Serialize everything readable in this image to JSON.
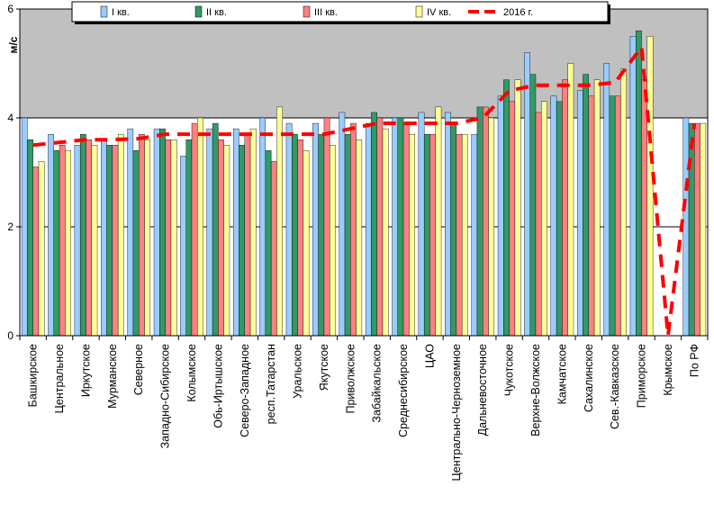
{
  "chart_data": {
    "type": "bar",
    "title": "",
    "xlabel": "",
    "ylabel": "м/с",
    "ylim": [
      0,
      6
    ],
    "yticks": [
      "0",
      "2",
      "4",
      "6"
    ],
    "grid_values": [
      2,
      4
    ],
    "legend_position": "top",
    "colors": {
      "plot_bg_upper": "#c0c0c0",
      "plot_bg_lower": "#ffffff",
      "line": "#ff0000"
    },
    "categories": [
      "Башкирское",
      "Центральное",
      "Иркутское",
      "Мурманское",
      "Северное",
      "Западно-Сибирское",
      "Колымское",
      "Обь-Иртышское",
      "Северо-Западное",
      "респ.Татарстан",
      "Уральское",
      "Якутское",
      "Приволжское",
      "Забайкальское",
      "Среднесибирское",
      "ЦАО",
      "Центрально-Черноземное",
      "Дальневосточное",
      "Чукотское",
      "Верхне-Волжское",
      "Камчатское",
      "Сахалинское",
      "Сев.-Кавказское",
      "Приморское",
      "Крымское",
      "По РФ"
    ],
    "series": [
      {
        "name": "I кв.",
        "color": "#99ccff",
        "values": [
          4.0,
          3.7,
          3.5,
          3.6,
          3.8,
          3.8,
          3.3,
          3.8,
          3.8,
          4.0,
          3.9,
          3.9,
          4.1,
          3.9,
          4.0,
          4.1,
          4.1,
          3.7,
          4.4,
          5.2,
          4.4,
          4.5,
          5.0,
          5.5,
          0,
          4.0
        ]
      },
      {
        "name": "II кв.",
        "color": "#339966",
        "values": [
          3.6,
          3.4,
          3.7,
          3.5,
          3.4,
          3.8,
          3.6,
          3.9,
          3.5,
          3.4,
          3.7,
          3.7,
          3.7,
          4.1,
          4.0,
          3.7,
          3.9,
          4.2,
          4.7,
          4.8,
          4.3,
          4.8,
          4.4,
          5.6,
          0,
          3.9
        ]
      },
      {
        "name": "III кв.",
        "color": "#ff8080",
        "values": [
          3.1,
          3.5,
          3.6,
          3.5,
          3.7,
          3.6,
          3.9,
          3.6,
          3.7,
          3.2,
          3.6,
          4.0,
          3.9,
          4.0,
          3.9,
          3.7,
          3.7,
          4.2,
          4.3,
          4.1,
          4.7,
          4.4,
          4.4,
          4.7,
          0,
          3.9
        ]
      },
      {
        "name": "IV кв.",
        "color": "#ffff99",
        "values": [
          3.2,
          3.4,
          3.5,
          3.7,
          3.6,
          3.6,
          4.0,
          3.5,
          3.8,
          4.2,
          3.4,
          3.5,
          3.6,
          3.8,
          3.7,
          4.2,
          3.7,
          4.0,
          4.7,
          4.3,
          5.0,
          4.7,
          4.9,
          5.5,
          0,
          3.9
        ]
      },
      {
        "name": "2016 г.",
        "color": "#ff0000",
        "style": "dashed-line",
        "values": [
          3.5,
          3.55,
          3.6,
          3.6,
          3.62,
          3.7,
          3.7,
          3.7,
          3.7,
          3.7,
          3.7,
          3.7,
          3.8,
          3.9,
          3.9,
          3.9,
          3.9,
          4.0,
          4.5,
          4.6,
          4.6,
          4.6,
          4.65,
          5.3,
          0,
          3.9
        ]
      }
    ]
  }
}
